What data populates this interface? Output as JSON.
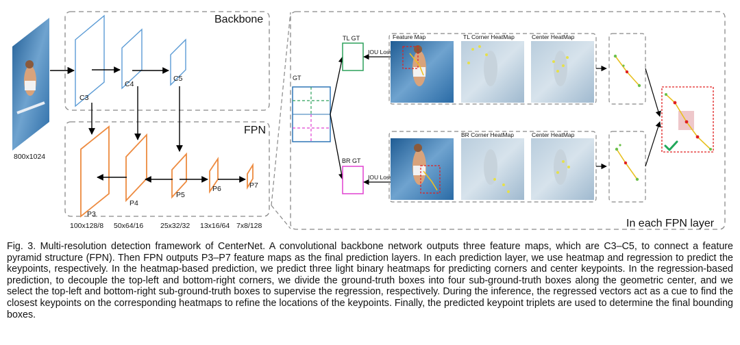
{
  "figure": {
    "backbone_title": "Backbone",
    "fpn_title": "FPN",
    "right_title": "In each FPN layer",
    "input_size": "800x1024",
    "backbone_layers": [
      "C3",
      "C4",
      "C5"
    ],
    "fpn_layers": [
      "P3",
      "P4",
      "P5",
      "P6",
      "P7"
    ],
    "fpn_sizes": [
      "100x128/8",
      "50x64/16",
      "25x32/32",
      "13x16/64",
      "7x8/128"
    ],
    "gt_label": "GT",
    "tl_gt_label": "TL GT",
    "br_gt_label": "BR GT",
    "iou_loss_label": "IOU Loss",
    "top_branch": {
      "feature_map": "Feature Map",
      "corner_heatmap": "TL Corner HeatMap",
      "center_heatmap": "Center HeatMap"
    },
    "bottom_branch": {
      "corner_heatmap": "BR Corner HeatMap",
      "center_heatmap": "Center HeatMap"
    }
  },
  "caption": {
    "label": "Fig. 3.",
    "text": "Multi-resolution detection framework of CenterNet. A convolutional backbone network outputs three feature maps, which are C3–C5, to connect a feature pyramid structure (FPN). Then FPN outputs P3–P7 feature maps as the final prediction layers. In each prediction layer, we use heatmap and regression to predict the keypoints, respectively. In the heatmap-based prediction, we predict three light binary heatmaps for predicting corners and center keypoints. In the regression-based prediction, to decouple the top-left and bottom-right corners, we divide the ground-truth boxes into four sub-ground-truth boxes along the geometric center, and we select the top-left and bottom-right sub-ground-truth boxes to supervise the regression, respectively. During the inference, the regressed vectors act as a cue to find the closest keypoints on the corresponding heatmaps to refine the locations of the keypoints. Finally, the predicted keypoint triplets are used to determine the final bounding boxes."
  },
  "colors": {
    "backbone_blue": "#5b9bd5",
    "fpn_orange": "#ed8a3f",
    "gt_green": "#2ca05a",
    "gt_magenta": "#e040d0",
    "water_blue": "#2f6fa8",
    "heatmap_blue": "#a9c2d6",
    "result_red": "#e02020",
    "check_green": "#21a85a"
  }
}
